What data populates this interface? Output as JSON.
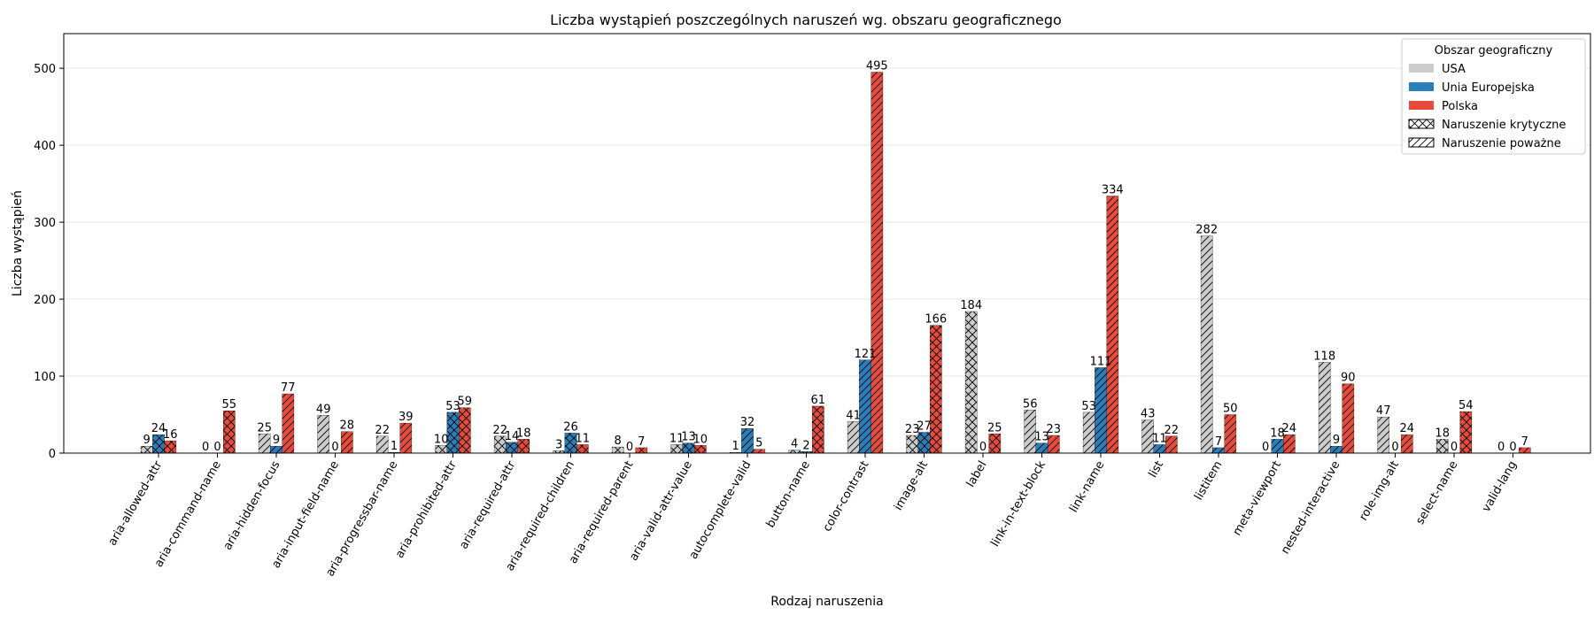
{
  "chart_data": {
    "type": "bar",
    "title": "Liczba wystąpień poszczególnych naruszeń wg. obszaru geograficznego",
    "xlabel": "Rodzaj naruszenia",
    "ylabel": "Liczba wystąpień",
    "ylim": [
      0,
      545
    ],
    "yticks": [
      0,
      100,
      200,
      300,
      400,
      500
    ],
    "grid": "horizontal",
    "categories": [
      "aria-allowed-attr",
      "aria-command-name",
      "aria-hidden-focus",
      "aria-input-field-name",
      "aria-progressbar-name",
      "aria-prohibited-attr",
      "aria-required-attr",
      "aria-required-children",
      "aria-required-parent",
      "aria-valid-attr-value",
      "autocomplete-valid",
      "button-name",
      "color-contrast",
      "image-alt",
      "label",
      "link-in-text-block",
      "link-name",
      "list",
      "listitem",
      "meta-viewport",
      "nested-interactive",
      "role-img-alt",
      "select-name",
      "valid-lang"
    ],
    "severity": [
      "critical",
      "critical",
      "serious",
      "serious",
      "serious",
      "critical",
      "critical",
      "critical",
      "critical",
      "critical",
      "serious",
      "critical",
      "serious",
      "critical",
      "critical",
      "serious",
      "serious",
      "serious",
      "serious",
      "serious",
      "serious",
      "serious",
      "critical",
      "serious"
    ],
    "series": [
      {
        "name": "USA",
        "color": "#cccccc",
        "values": [
          9,
          0,
          25,
          49,
          22,
          10,
          22,
          3,
          8,
          11,
          1,
          4,
          41,
          23,
          184,
          56,
          53,
          43,
          282,
          0,
          118,
          47,
          18,
          0
        ]
      },
      {
        "name": "Unia Europejska",
        "color": "#2a7fba",
        "values": [
          24,
          0,
          9,
          0,
          1,
          53,
          14,
          26,
          0,
          13,
          32,
          2,
          121,
          27,
          0,
          13,
          111,
          11,
          7,
          18,
          9,
          0,
          0,
          0
        ]
      },
      {
        "name": "Polska",
        "color": "#e64b3c",
        "values": [
          16,
          55,
          77,
          28,
          39,
          59,
          18,
          11,
          7,
          10,
          5,
          61,
          495,
          166,
          25,
          23,
          334,
          22,
          50,
          24,
          90,
          24,
          54,
          7
        ]
      }
    ],
    "legend": {
      "title": "Obszar geograficzny",
      "position": "top-right",
      "entries": [
        "USA",
        "Unia Europejska",
        "Polska",
        "Naruszenie krytyczne",
        "Naruszenie poważne"
      ]
    }
  }
}
